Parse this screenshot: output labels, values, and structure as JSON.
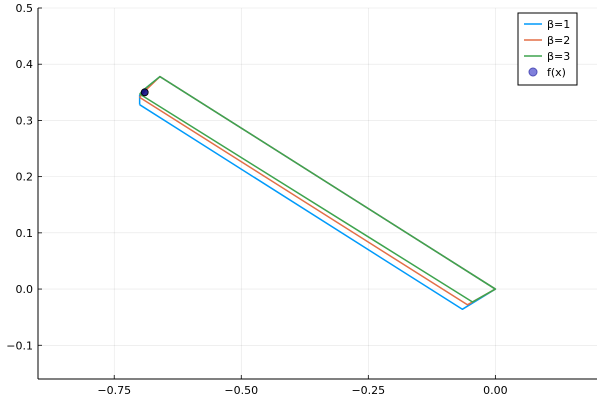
{
  "chart_data": {
    "type": "line",
    "title": "",
    "xlabel": "",
    "ylabel": "",
    "xlim": [
      -0.9,
      0.2
    ],
    "ylim": [
      -0.16,
      0.5
    ],
    "grid": true,
    "legend_position": "top-right",
    "x_ticks": [
      -0.75,
      -0.5,
      -0.25,
      0.0
    ],
    "x_tick_labels": [
      "−0.75",
      "−0.50",
      "−0.25",
      "0.00"
    ],
    "y_ticks": [
      -0.1,
      0.0,
      0.1,
      0.2,
      0.3,
      0.4,
      0.5
    ],
    "y_tick_labels": [
      "−0.1",
      "0.0",
      "0.1",
      "0.2",
      "0.3",
      "0.4",
      "0.5"
    ],
    "series": [
      {
        "name": "β=1",
        "color": "#009AFA",
        "x": [
          -0.7,
          -0.7,
          -0.69,
          -0.66,
          0.0,
          -0.065,
          -0.7
        ],
        "y": [
          0.328,
          0.345,
          0.356,
          0.378,
          0.0,
          -0.036,
          0.328
        ]
      },
      {
        "name": "β=2",
        "color": "#E36F47",
        "x": [
          -0.7,
          -0.69,
          -0.66,
          0.0,
          -0.055,
          -0.7
        ],
        "y": [
          0.341,
          0.352,
          0.378,
          0.0,
          -0.028,
          0.341
        ]
      },
      {
        "name": "β=3",
        "color": "#3EA44E",
        "x": [
          -0.7,
          -0.69,
          -0.66,
          0.0,
          -0.045,
          -0.7
        ],
        "y": [
          0.347,
          0.356,
          0.378,
          0.0,
          -0.023,
          0.347
        ]
      }
    ],
    "points": {
      "name": "f(x)",
      "color": "#000080",
      "x": [
        -0.69
      ],
      "y": [
        0.35
      ]
    }
  }
}
